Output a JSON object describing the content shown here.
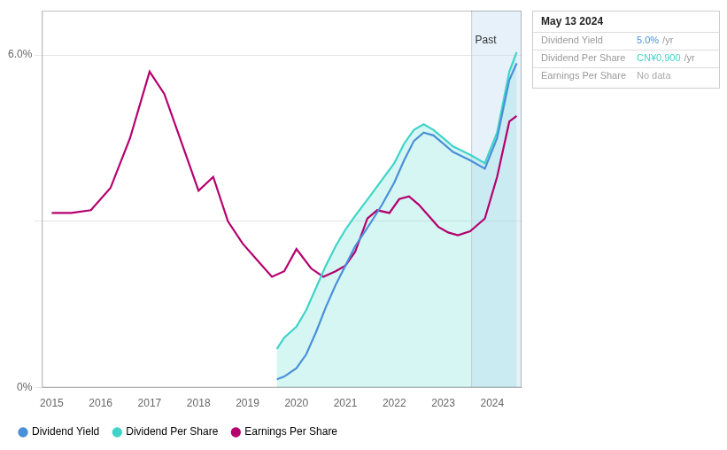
{
  "chart_data": {
    "type": "line",
    "xlim": [
      2014.8,
      2024.6
    ],
    "xticks": [
      2015,
      2016,
      2017,
      2018,
      2019,
      2020,
      2021,
      2022,
      2023,
      2024
    ],
    "ylim": [
      0.0,
      6.8
    ],
    "yticks": [
      {
        "value": 0.0,
        "label": "0%"
      },
      {
        "value": 3.0,
        "label": null
      },
      {
        "value": 6.0,
        "label": "6.0%"
      }
    ],
    "grid": "y",
    "legend": "bottom",
    "series": [
      {
        "name": "Dividend Yield",
        "color": "#4a90d9",
        "x": [
          2019.6,
          2019.75,
          2020.0,
          2020.2,
          2020.4,
          2020.6,
          2020.8,
          2021.0,
          2021.2,
          2021.5,
          2021.75,
          2022.0,
          2022.2,
          2022.4,
          2022.6,
          2022.8,
          2023.0,
          2023.2,
          2023.55,
          2023.85,
          2024.1,
          2024.35,
          2024.5
        ],
        "values": [
          0.15,
          0.2,
          0.35,
          0.6,
          1.0,
          1.45,
          1.85,
          2.2,
          2.55,
          2.95,
          3.3,
          3.7,
          4.1,
          4.45,
          4.6,
          4.55,
          4.4,
          4.25,
          4.1,
          3.95,
          4.5,
          5.55,
          5.85
        ]
      },
      {
        "name": "Dividend Per Share",
        "color": "#40d4c8",
        "type": "area",
        "x": [
          2019.6,
          2019.75,
          2020.0,
          2020.2,
          2020.4,
          2020.6,
          2020.8,
          2021.0,
          2021.2,
          2021.5,
          2021.75,
          2022.0,
          2022.2,
          2022.4,
          2022.6,
          2022.8,
          2023.0,
          2023.2,
          2023.55,
          2023.85,
          2024.1,
          2024.35,
          2024.5
        ],
        "values": [
          0.7,
          0.9,
          1.1,
          1.4,
          1.8,
          2.2,
          2.55,
          2.85,
          3.1,
          3.45,
          3.75,
          4.05,
          4.4,
          4.65,
          4.75,
          4.65,
          4.5,
          4.35,
          4.2,
          4.05,
          4.6,
          5.7,
          6.05
        ]
      },
      {
        "name": "Earnings Per Share",
        "color": "#b5006e",
        "x": [
          2015.0,
          2015.4,
          2015.8,
          2016.2,
          2016.6,
          2017.0,
          2017.3,
          2017.7,
          2018.0,
          2018.3,
          2018.6,
          2018.9,
          2019.2,
          2019.5,
          2019.75,
          2020.0,
          2020.3,
          2020.55,
          2020.8,
          2021.0,
          2021.2,
          2021.45,
          2021.65,
          2021.9,
          2022.1,
          2022.3,
          2022.5,
          2022.7,
          2022.9,
          2023.1,
          2023.3,
          2023.55,
          2023.85,
          2024.1,
          2024.35,
          2024.5
        ],
        "values": [
          3.15,
          3.15,
          3.2,
          3.6,
          4.5,
          5.7,
          5.3,
          4.3,
          3.55,
          3.8,
          3.0,
          2.6,
          2.3,
          2.0,
          2.1,
          2.5,
          2.15,
          2.0,
          2.1,
          2.2,
          2.45,
          3.05,
          3.2,
          3.15,
          3.4,
          3.45,
          3.3,
          3.1,
          2.9,
          2.8,
          2.75,
          2.82,
          3.05,
          3.8,
          4.8,
          4.9
        ]
      }
    ],
    "annotations": [
      {
        "text": "Past",
        "x": 2023.65,
        "y": 6.35,
        "line_x": 2023.58
      }
    ],
    "tooltip": {
      "title": "May 13 2024",
      "rows": [
        {
          "label": "Dividend Yield",
          "value": "5.0%",
          "suffix": "/yr",
          "color": "#4a90d9"
        },
        {
          "label": "Dividend Per Share",
          "value": "CN¥0,900",
          "suffix": "/yr",
          "color": "#40d4c8"
        },
        {
          "label": "Earnings Per Share",
          "value": "No data",
          "color": "#aaaaaa"
        }
      ]
    }
  }
}
